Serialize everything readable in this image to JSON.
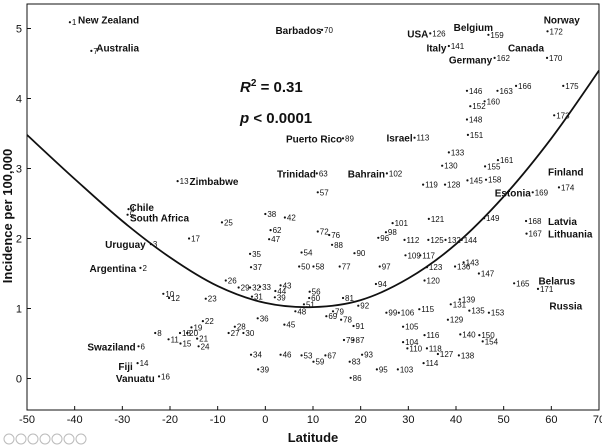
{
  "chart_data": {
    "type": "scatter",
    "title": "",
    "xlabel": "Latitude",
    "ylabel": "Incidence per 100,000",
    "xlim": [
      -50,
      70
    ],
    "ylim": [
      -0.45,
      5.35
    ],
    "xticks": [
      -50,
      -40,
      -30,
      -20,
      -10,
      0,
      10,
      20,
      30,
      40,
      50,
      60,
      70
    ],
    "yticks": [
      0,
      1,
      2,
      3,
      4,
      5
    ],
    "grid": false,
    "stats": {
      "r2_label": "R",
      "r2_sup": "2",
      "r2_value": " = 0.31",
      "p_label": "p",
      "p_value": " < 0.0001"
    },
    "fit_curve": {
      "type": "quadratic-fit",
      "points": [
        [
          -50,
          3.48
        ],
        [
          -40,
          2.85
        ],
        [
          -30,
          2.25
        ],
        [
          -20,
          1.73
        ],
        [
          -10,
          1.32
        ],
        [
          0,
          1.08
        ],
        [
          10,
          1.02
        ],
        [
          20,
          1.12
        ],
        [
          30,
          1.43
        ],
        [
          40,
          1.92
        ],
        [
          50,
          2.6
        ],
        [
          60,
          3.43
        ],
        [
          70,
          4.4
        ]
      ]
    },
    "points": [
      {
        "x": -41.0,
        "y": 5.09,
        "label": "1"
      },
      {
        "x": -36.5,
        "y": 4.68,
        "label": "7"
      },
      {
        "x": -28.7,
        "y": 2.42,
        "label": "4"
      },
      {
        "x": -28.9,
        "y": 2.34,
        "label": "5"
      },
      {
        "x": -18.4,
        "y": 2.82,
        "label": "13"
      },
      {
        "x": -24.0,
        "y": 1.92,
        "label": "3"
      },
      {
        "x": -26.2,
        "y": 1.58,
        "label": "2"
      },
      {
        "x": -16.0,
        "y": 2.0,
        "label": "17"
      },
      {
        "x": -9.1,
        "y": 2.23,
        "label": "25"
      },
      {
        "x": -21.4,
        "y": 1.21,
        "label": "10"
      },
      {
        "x": -20.2,
        "y": 1.15,
        "label": "12"
      },
      {
        "x": -12.5,
        "y": 1.14,
        "label": "23"
      },
      {
        "x": -8.3,
        "y": 1.4,
        "label": "26"
      },
      {
        "x": -5.6,
        "y": 1.3,
        "label": "29"
      },
      {
        "x": -3.2,
        "y": 1.3,
        "label": "32"
      },
      {
        "x": -13.1,
        "y": 0.82,
        "label": "22"
      },
      {
        "x": -15.5,
        "y": 0.73,
        "label": "19"
      },
      {
        "x": -16.4,
        "y": 0.65,
        "label": "20"
      },
      {
        "x": -17.9,
        "y": 0.65,
        "label": "18"
      },
      {
        "x": -23.1,
        "y": 0.65,
        "label": "8"
      },
      {
        "x": -20.3,
        "y": 0.56,
        "label": "11"
      },
      {
        "x": -17.8,
        "y": 0.5,
        "label": "15"
      },
      {
        "x": -14.3,
        "y": 0.57,
        "label": "21"
      },
      {
        "x": -14.0,
        "y": 0.46,
        "label": "24"
      },
      {
        "x": -6.4,
        "y": 0.74,
        "label": "28"
      },
      {
        "x": -7.7,
        "y": 0.65,
        "label": "27"
      },
      {
        "x": -4.6,
        "y": 0.65,
        "label": "30"
      },
      {
        "x": -26.6,
        "y": 0.46,
        "label": "6"
      },
      {
        "x": -26.8,
        "y": 0.22,
        "label": "14"
      },
      {
        "x": -22.3,
        "y": 0.03,
        "label": "16"
      },
      {
        "x": 0.0,
        "y": 2.35,
        "label": "38"
      },
      {
        "x": 4.1,
        "y": 2.3,
        "label": "42"
      },
      {
        "x": 11.0,
        "y": 2.66,
        "label": "57"
      },
      {
        "x": 1.1,
        "y": 2.12,
        "label": "62"
      },
      {
        "x": 0.8,
        "y": 1.99,
        "label": "47"
      },
      {
        "x": 11.0,
        "y": 2.1,
        "label": "72"
      },
      {
        "x": 14.0,
        "y": 1.91,
        "label": "88"
      },
      {
        "x": 13.4,
        "y": 2.05,
        "label": "76"
      },
      {
        "x": -3.2,
        "y": 1.78,
        "label": "35"
      },
      {
        "x": -3.0,
        "y": 1.59,
        "label": "37"
      },
      {
        "x": 7.6,
        "y": 1.8,
        "label": "54"
      },
      {
        "x": 7.1,
        "y": 1.6,
        "label": "50"
      },
      {
        "x": 10.1,
        "y": 1.6,
        "label": "58"
      },
      {
        "x": 15.6,
        "y": 1.6,
        "label": "77"
      },
      {
        "x": 18.7,
        "y": 1.79,
        "label": "90"
      },
      {
        "x": 26.7,
        "y": 2.22,
        "label": "101"
      },
      {
        "x": 25.3,
        "y": 2.09,
        "label": "98"
      },
      {
        "x": 23.7,
        "y": 2.01,
        "label": "96"
      },
      {
        "x": 24.0,
        "y": 1.6,
        "label": "97"
      },
      {
        "x": 23.2,
        "y": 1.35,
        "label": "94"
      },
      {
        "x": 3.2,
        "y": 1.33,
        "label": "43"
      },
      {
        "x": 2.1,
        "y": 1.25,
        "label": "44"
      },
      {
        "x": -1.1,
        "y": 1.31,
        "label": "33"
      },
      {
        "x": 9.3,
        "y": 1.24,
        "label": "56"
      },
      {
        "x": 9.2,
        "y": 1.15,
        "label": "60"
      },
      {
        "x": 8.1,
        "y": 1.06,
        "label": "51"
      },
      {
        "x": -2.8,
        "y": 1.17,
        "label": "31"
      },
      {
        "x": 2.0,
        "y": 1.16,
        "label": "39"
      },
      {
        "x": 6.3,
        "y": 0.96,
        "label": "48"
      },
      {
        "x": 16.3,
        "y": 1.15,
        "label": "81"
      },
      {
        "x": 14.2,
        "y": 0.96,
        "label": "79"
      },
      {
        "x": 12.8,
        "y": 0.89,
        "label": "69"
      },
      {
        "x": 15.9,
        "y": 0.84,
        "label": "78"
      },
      {
        "x": 19.5,
        "y": 1.04,
        "label": "92"
      },
      {
        "x": -1.6,
        "y": 0.86,
        "label": "36"
      },
      {
        "x": 4.0,
        "y": 0.77,
        "label": "45"
      },
      {
        "x": 18.5,
        "y": 0.75,
        "label": "91"
      },
      {
        "x": 16.5,
        "y": 0.55,
        "label": "79"
      },
      {
        "x": 18.5,
        "y": 0.55,
        "label": "87"
      },
      {
        "x": 20.3,
        "y": 0.34,
        "label": "93"
      },
      {
        "x": 17.7,
        "y": 0.24,
        "label": "83"
      },
      {
        "x": 17.9,
        "y": 0.01,
        "label": "86"
      },
      {
        "x": -3.0,
        "y": 0.34,
        "label": "34"
      },
      {
        "x": 3.2,
        "y": 0.34,
        "label": "46"
      },
      {
        "x": 7.6,
        "y": 0.33,
        "label": "53"
      },
      {
        "x": 12.6,
        "y": 0.33,
        "label": "67"
      },
      {
        "x": 10.1,
        "y": 0.24,
        "label": "59"
      },
      {
        "x": -1.5,
        "y": 0.13,
        "label": "39"
      },
      {
        "x": 23.4,
        "y": 0.13,
        "label": "95"
      },
      {
        "x": 27.8,
        "y": 0.13,
        "label": "103"
      },
      {
        "x": 33.2,
        "y": 0.22,
        "label": "114"
      },
      {
        "x": 36.2,
        "y": 0.35,
        "label": "127"
      },
      {
        "x": 40.6,
        "y": 0.33,
        "label": "138"
      },
      {
        "x": 28.9,
        "y": 0.52,
        "label": "104"
      },
      {
        "x": 29.8,
        "y": 0.43,
        "label": "110"
      },
      {
        "x": 33.9,
        "y": 0.43,
        "label": "118"
      },
      {
        "x": 33.4,
        "y": 0.62,
        "label": "116"
      },
      {
        "x": 28.9,
        "y": 0.74,
        "label": "105"
      },
      {
        "x": 25.4,
        "y": 0.94,
        "label": "99"
      },
      {
        "x": 28.0,
        "y": 0.94,
        "label": "106"
      },
      {
        "x": 32.3,
        "y": 0.99,
        "label": "115"
      },
      {
        "x": 38.9,
        "y": 1.06,
        "label": "131"
      },
      {
        "x": 40.8,
        "y": 1.13,
        "label": "139"
      },
      {
        "x": 42.8,
        "y": 0.97,
        "label": "135"
      },
      {
        "x": 46.9,
        "y": 0.94,
        "label": "153"
      },
      {
        "x": 38.3,
        "y": 0.84,
        "label": "129"
      },
      {
        "x": 40.9,
        "y": 0.63,
        "label": "140"
      },
      {
        "x": 44.9,
        "y": 0.62,
        "label": "150"
      },
      {
        "x": 45.6,
        "y": 0.53,
        "label": "154"
      },
      {
        "x": 33.4,
        "y": 1.4,
        "label": "120"
      },
      {
        "x": 29.4,
        "y": 1.76,
        "label": "109"
      },
      {
        "x": 32.5,
        "y": 1.76,
        "label": "117"
      },
      {
        "x": 33.9,
        "y": 1.59,
        "label": "123"
      },
      {
        "x": 39.8,
        "y": 1.6,
        "label": "136"
      },
      {
        "x": 41.6,
        "y": 1.66,
        "label": "143"
      },
      {
        "x": 44.8,
        "y": 1.5,
        "label": "147"
      },
      {
        "x": 29.2,
        "y": 1.98,
        "label": "112"
      },
      {
        "x": 34.2,
        "y": 1.98,
        "label": "125"
      },
      {
        "x": 37.8,
        "y": 1.98,
        "label": "132"
      },
      {
        "x": 41.2,
        "y": 1.98,
        "label": "144"
      },
      {
        "x": 34.3,
        "y": 2.28,
        "label": "121"
      },
      {
        "x": 45.9,
        "y": 2.29,
        "label": "149"
      },
      {
        "x": 33.1,
        "y": 2.77,
        "label": "119"
      },
      {
        "x": 37.7,
        "y": 2.77,
        "label": "128"
      },
      {
        "x": 42.4,
        "y": 2.83,
        "label": "145"
      },
      {
        "x": 46.3,
        "y": 2.84,
        "label": "158"
      },
      {
        "x": 37.1,
        "y": 3.04,
        "label": "130"
      },
      {
        "x": 46.1,
        "y": 3.03,
        "label": "155"
      },
      {
        "x": 48.8,
        "y": 3.12,
        "label": "161"
      },
      {
        "x": 38.5,
        "y": 3.23,
        "label": "133"
      },
      {
        "x": 42.5,
        "y": 3.48,
        "label": "151"
      },
      {
        "x": 42.3,
        "y": 3.7,
        "label": "148"
      },
      {
        "x": 43.0,
        "y": 3.89,
        "label": "152"
      },
      {
        "x": 46.0,
        "y": 3.96,
        "label": "160"
      },
      {
        "x": 42.3,
        "y": 4.11,
        "label": "146"
      },
      {
        "x": 48.7,
        "y": 4.11,
        "label": "163"
      },
      {
        "x": 52.6,
        "y": 4.18,
        "label": "166"
      },
      {
        "x": 60.6,
        "y": 3.76,
        "label": "173"
      },
      {
        "x": 62.5,
        "y": 4.18,
        "label": "175"
      },
      {
        "x": 59.1,
        "y": 4.58,
        "label": "170"
      },
      {
        "x": 59.2,
        "y": 4.96,
        "label": "172"
      },
      {
        "x": 48.1,
        "y": 4.58,
        "label": "162"
      },
      {
        "x": 38.5,
        "y": 4.75,
        "label": "141"
      },
      {
        "x": 46.8,
        "y": 4.91,
        "label": "159"
      },
      {
        "x": 34.6,
        "y": 4.93,
        "label": "126"
      },
      {
        "x": 11.9,
        "y": 4.98,
        "label": "70"
      },
      {
        "x": 16.3,
        "y": 3.43,
        "label": "89"
      },
      {
        "x": 31.3,
        "y": 3.44,
        "label": "113"
      },
      {
        "x": 25.5,
        "y": 2.93,
        "label": "102"
      },
      {
        "x": 10.8,
        "y": 2.93,
        "label": "63"
      },
      {
        "x": 61.6,
        "y": 2.73,
        "label": "174"
      },
      {
        "x": 56.1,
        "y": 2.66,
        "label": "169"
      },
      {
        "x": 54.7,
        "y": 2.25,
        "label": "168"
      },
      {
        "x": 54.8,
        "y": 2.07,
        "label": "167"
      },
      {
        "x": 52.2,
        "y": 1.36,
        "label": "165"
      },
      {
        "x": 57.2,
        "y": 1.28,
        "label": "171"
      }
    ],
    "annotations": [
      {
        "text": "New Zealand",
        "x": -39.3,
        "y": 5.13,
        "anchor": "start"
      },
      {
        "text": "Australia",
        "x": -26.5,
        "y": 4.73,
        "anchor": "end"
      },
      {
        "text": "Chile",
        "x": -28.5,
        "y": 2.45,
        "anchor": "start"
      },
      {
        "text": "South Africa",
        "x": -28.4,
        "y": 2.3,
        "anchor": "start"
      },
      {
        "text": "Zimbabwe",
        "x": -15.9,
        "y": 2.82,
        "anchor": "start"
      },
      {
        "text": "Uruguay",
        "x": -25.1,
        "y": 1.92,
        "anchor": "end"
      },
      {
        "text": "Argentina",
        "x": -27.1,
        "y": 1.58,
        "anchor": "end"
      },
      {
        "text": "Swaziland",
        "x": -27.2,
        "y": 0.46,
        "anchor": "end"
      },
      {
        "text": "Fiji",
        "x": -27.8,
        "y": 0.18,
        "anchor": "end"
      },
      {
        "text": "Vanuatu",
        "x": -23.2,
        "y": 0.01,
        "anchor": "end"
      },
      {
        "text": "Barbados",
        "x": 11.8,
        "y": 4.98,
        "anchor": "end"
      },
      {
        "text": "USA",
        "x": 34.2,
        "y": 4.93,
        "anchor": "end"
      },
      {
        "text": "Belgium",
        "x": 39.5,
        "y": 5.02,
        "anchor": "start"
      },
      {
        "text": "Norway",
        "x": 58.4,
        "y": 5.13,
        "anchor": "start"
      },
      {
        "text": "Italy",
        "x": 38.0,
        "y": 4.73,
        "anchor": "end"
      },
      {
        "text": "Canada",
        "x": 50.9,
        "y": 4.73,
        "anchor": "start"
      },
      {
        "text": "Germany",
        "x": 47.6,
        "y": 4.56,
        "anchor": "end"
      },
      {
        "text": "Puerto Rico",
        "x": 16.1,
        "y": 3.43,
        "anchor": "end"
      },
      {
        "text": "Israel",
        "x": 30.9,
        "y": 3.44,
        "anchor": "end"
      },
      {
        "text": "Trinidad",
        "x": 10.6,
        "y": 2.93,
        "anchor": "end"
      },
      {
        "text": "Bahrain",
        "x": 25.1,
        "y": 2.93,
        "anchor": "end"
      },
      {
        "text": "Finland",
        "x": 59.3,
        "y": 2.96,
        "anchor": "start"
      },
      {
        "text": "Estonia",
        "x": 55.7,
        "y": 2.66,
        "anchor": "end"
      },
      {
        "text": "Latvia",
        "x": 59.3,
        "y": 2.25,
        "anchor": "start"
      },
      {
        "text": "Lithuania",
        "x": 59.3,
        "y": 2.07,
        "anchor": "start"
      },
      {
        "text": "Belarus",
        "x": 57.3,
        "y": 1.4,
        "anchor": "start"
      },
      {
        "text": "Russia",
        "x": 59.6,
        "y": 1.04,
        "anchor": "start"
      }
    ]
  }
}
